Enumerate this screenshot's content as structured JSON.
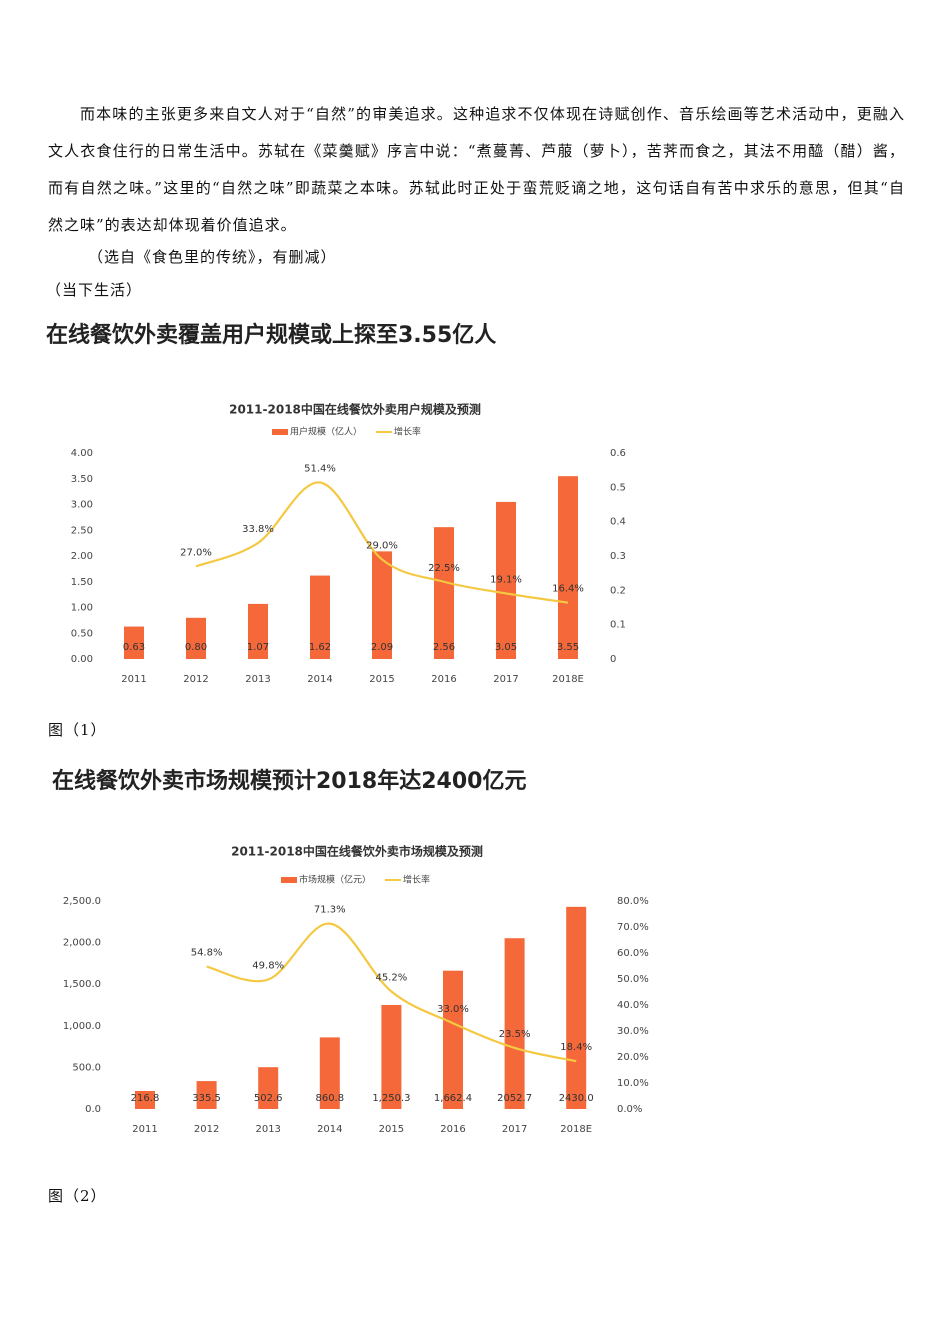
{
  "paragraph": "而本味的主张更多来自文人对于“自然”的审美追求。这种追求不仅体现在诗赋创作、音乐绘画等艺术活动中，更融入文人衣食住行的日常生活中。苏轼在《菜羹赋》序言中说：“煮蔓菁、芦菔（萝卜），苦荠而食之，其法不用醯（醋）酱，而有自然之味。”这里的“自然之味”即蔬菜之本味。苏轼此时正处于蛮荒贬谪之地，这句话自有苦中求乐的意思，但其“自然之味”的表达却体现着价值追求。",
  "source": "（选自《食色里的传统》，有删减）",
  "section": "（当下生活）",
  "headings": [
    "在线餐饮外卖覆盖用户规模或上探至3.55亿人",
    "在线餐饮外卖市场规模预计2018年达2400亿元"
  ],
  "captions": [
    "图（1）",
    "图（2）"
  ],
  "chart_data": [
    {
      "type": "bar",
      "title": "2011-2018中国在线餐饮外卖用户规模及预测",
      "categories": [
        "2011",
        "2012",
        "2013",
        "2014",
        "2015",
        "2016",
        "2017",
        "2018E"
      ],
      "series": [
        {
          "name": "用户规模（亿人）",
          "type": "bar",
          "color": "#f4683a",
          "values": [
            0.63,
            0.8,
            1.07,
            1.62,
            2.09,
            2.56,
            3.05,
            3.55
          ],
          "value_labels": [
            "0.63",
            "0.80",
            "1.07",
            "1.62",
            "2.09",
            "2.56",
            "3.05",
            "3.55"
          ]
        },
        {
          "name": "增长率",
          "type": "line",
          "axis": "y2",
          "color": "#f5c842",
          "values": [
            null,
            0.27,
            0.338,
            0.514,
            0.29,
            0.225,
            0.191,
            0.164
          ],
          "value_labels": [
            null,
            "27.0%",
            "33.8%",
            "51.4%",
            "29.0%",
            "22.5%",
            "19.1%",
            "16.4%"
          ]
        }
      ],
      "ylim": [
        0,
        4
      ],
      "yticks": [
        {
          "value": 0,
          "label": "0.00"
        },
        {
          "value": 0.5,
          "label": "0.50"
        },
        {
          "value": 1,
          "label": "1.00"
        },
        {
          "value": 1.5,
          "label": "1.50"
        },
        {
          "value": 2,
          "label": "2.00"
        },
        {
          "value": 2.5,
          "label": "2.50"
        },
        {
          "value": 3,
          "label": "3.00"
        },
        {
          "value": 3.5,
          "label": "3.50"
        },
        {
          "value": 4,
          "label": "4.00"
        }
      ],
      "y2lim": [
        0,
        0.6
      ],
      "y2ticks": [
        0,
        0.1,
        0.2,
        0.3,
        0.4,
        0.5,
        0.6
      ]
    },
    {
      "type": "bar",
      "title": "2011-2018中国在线餐饮外卖市场规模及预测",
      "categories": [
        "2011",
        "2012",
        "2013",
        "2014",
        "2015",
        "2016",
        "2017",
        "2018E"
      ],
      "series": [
        {
          "name": "市场规模（亿元）",
          "type": "bar",
          "color": "#f4683a",
          "values": [
            216.8,
            335.5,
            502.6,
            860.8,
            1250.3,
            1662.4,
            2052.7,
            2430.0
          ],
          "value_labels": [
            "216.8",
            "335.5",
            "502.6",
            "860.8",
            "1,250.3",
            "1,662.4",
            "2052.7",
            "2430.0"
          ]
        },
        {
          "name": "增长率",
          "type": "line",
          "axis": "y2",
          "color": "#f5c842",
          "values": [
            null,
            54.8,
            49.8,
            71.3,
            45.2,
            33.0,
            23.5,
            18.4
          ],
          "value_labels": [
            null,
            "54.8%",
            "49.8%",
            "71.3%",
            "45.2%",
            "33.0%",
            "23.5%",
            "18.4%"
          ]
        }
      ],
      "ylim": [
        0,
        2500
      ],
      "yticks": [
        {
          "value": 0,
          "label": "0.0"
        },
        {
          "value": 500,
          "label": "500.0"
        },
        {
          "value": 1000,
          "label": "1,000.0"
        },
        {
          "value": 1500,
          "label": "1,500.0"
        },
        {
          "value": 2000,
          "label": "2,000.0"
        },
        {
          "value": 2500,
          "label": "2,500.0"
        }
      ],
      "y2lim": [
        0,
        80
      ],
      "y2ticks": [
        {
          "value": 0,
          "label": "0.0%"
        },
        {
          "value": 10,
          "label": "10.0%"
        },
        {
          "value": 20,
          "label": "20.0%"
        },
        {
          "value": 30,
          "label": "30.0%"
        },
        {
          "value": 40,
          "label": "40.0%"
        },
        {
          "value": 50,
          "label": "50.0%"
        },
        {
          "value": 60,
          "label": "60.0%"
        },
        {
          "value": 70,
          "label": "70.0%"
        },
        {
          "value": 80,
          "label": "80.0%"
        }
      ]
    }
  ]
}
